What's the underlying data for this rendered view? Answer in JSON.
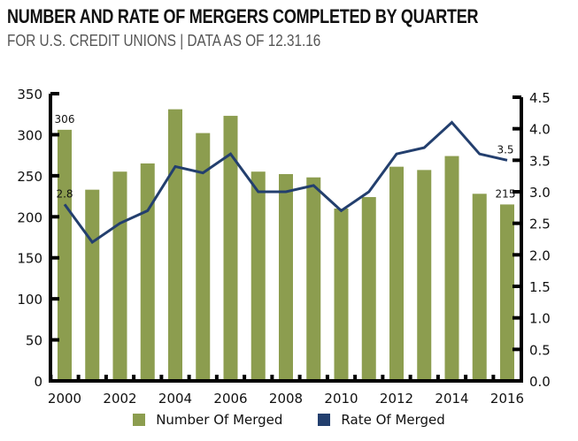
{
  "chart_data": {
    "type": "bar",
    "title": "NUMBER AND RATE OF MERGERS COMPLETED BY QUARTER",
    "subtitle": "FOR U.S. CREDIT UNIONS | DATA AS OF 12.31.16",
    "categories": [
      2000,
      2001,
      2002,
      2003,
      2004,
      2005,
      2006,
      2007,
      2008,
      2009,
      2010,
      2011,
      2012,
      2013,
      2014,
      2015,
      2016
    ],
    "x_tick_labels": [
      "2000",
      "2002",
      "2004",
      "2006",
      "2008",
      "2010",
      "2012",
      "2014",
      "2016"
    ],
    "series": [
      {
        "name": "Number Of Merged",
        "type": "bar",
        "axis": "left",
        "color": "#8c9d4f",
        "values": [
          306,
          233,
          255,
          265,
          331,
          302,
          323,
          255,
          252,
          248,
          210,
          224,
          261,
          257,
          274,
          228,
          215
        ]
      },
      {
        "name": "Rate Of Merged",
        "type": "line",
        "axis": "right",
        "color": "#233f6e",
        "values": [
          2.8,
          2.2,
          2.5,
          2.7,
          3.4,
          3.3,
          3.6,
          3.0,
          3.0,
          3.1,
          2.7,
          3.0,
          3.6,
          3.7,
          4.1,
          3.6,
          3.5
        ]
      }
    ],
    "y_left": {
      "min": 0,
      "max": 350,
      "step": 50,
      "tick_labels": [
        "0",
        "50",
        "100",
        "150",
        "200",
        "250",
        "300",
        "350"
      ]
    },
    "y_right": {
      "min": 0,
      "max": 4.5,
      "step": 0.5,
      "tick_labels": [
        "0.0",
        "0.5",
        "1.0",
        "1.5",
        "2.0",
        "2.5",
        "3.0",
        "3.5",
        "4.0",
        "4.5"
      ]
    },
    "annotations": [
      {
        "series": "Number Of Merged",
        "category": 2000,
        "text": "306"
      },
      {
        "series": "Number Of Merged",
        "category": 2016,
        "text": "215"
      },
      {
        "series": "Rate Of Merged",
        "category": 2000,
        "text": "2.8"
      },
      {
        "series": "Rate Of Merged",
        "category": 2016,
        "text": "3.5"
      }
    ],
    "grid": false,
    "legend_position": "bottom"
  }
}
